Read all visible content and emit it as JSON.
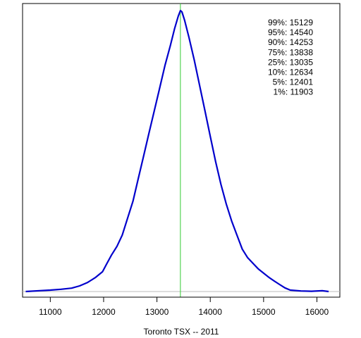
{
  "chart_data": {
    "type": "line",
    "title": "",
    "xlabel": "Toronto TSX -- 2011",
    "ylabel": "",
    "xlim": [
      10480,
      16430
    ],
    "ylim": [
      -0.02,
      1.02
    ],
    "x_ticks": [
      11000,
      12000,
      13000,
      14000,
      15000,
      16000
    ],
    "show_y_axis": false,
    "grid": false,
    "series": [
      {
        "name": "",
        "color": "#0000cc",
        "x": [
          10540,
          10800,
          11000,
          11200,
          11400,
          11550,
          11700,
          11850,
          11980,
          12050,
          12150,
          12250,
          12350,
          12450,
          12550,
          12650,
          12750,
          12850,
          12950,
          13050,
          13150,
          13250,
          13330,
          13400,
          13440,
          13470,
          13520,
          13600,
          13700,
          13800,
          13900,
          14000,
          14100,
          14200,
          14300,
          14400,
          14500,
          14600,
          14700,
          14800,
          14900,
          15000,
          15100,
          15200,
          15300,
          15400,
          15500,
          15700,
          15900,
          16100,
          16220
        ],
        "y": [
          0.0,
          0.003,
          0.005,
          0.008,
          0.012,
          0.02,
          0.032,
          0.05,
          0.07,
          0.095,
          0.13,
          0.16,
          0.2,
          0.26,
          0.32,
          0.4,
          0.48,
          0.56,
          0.64,
          0.72,
          0.8,
          0.87,
          0.93,
          0.975,
          0.995,
          0.99,
          0.96,
          0.9,
          0.82,
          0.73,
          0.64,
          0.55,
          0.46,
          0.38,
          0.31,
          0.25,
          0.2,
          0.15,
          0.12,
          0.1,
          0.08,
          0.065,
          0.05,
          0.037,
          0.025,
          0.013,
          0.005,
          0.002,
          0.001,
          0.003,
          0.0
        ]
      }
    ],
    "baseline": {
      "y": 0,
      "color": "#bbbbbb"
    },
    "vline": {
      "x": 13440,
      "color": "#33cc33"
    },
    "quantiles": [
      "99%: 15129",
      "95%: 14540",
      "90%: 14253",
      "75%: 13838",
      "25%: 13035",
      "10%: 12634",
      "5%: 12401",
      "1%: 11903"
    ]
  }
}
